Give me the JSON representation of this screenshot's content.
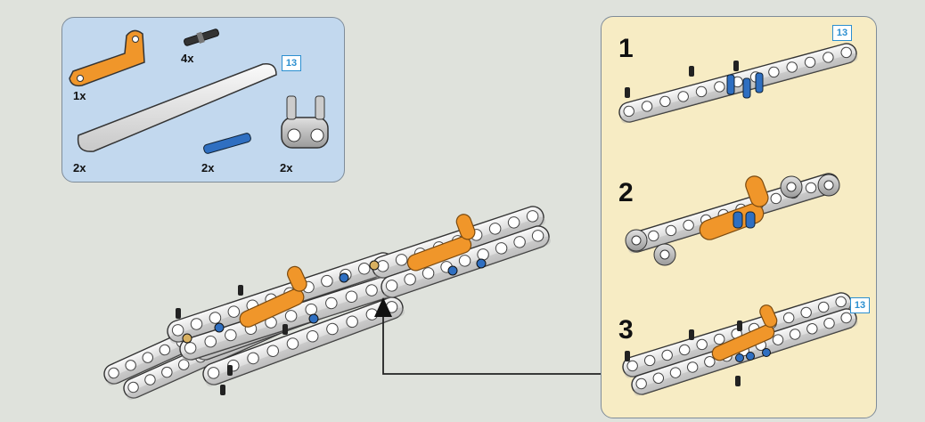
{
  "parts_list": {
    "badge": "13",
    "items": [
      {
        "qty": "1x",
        "part": "orange-bent-liftarm"
      },
      {
        "qty": "4x",
        "part": "black-pin"
      },
      {
        "qty": "2x",
        "part": "white-long-beam"
      },
      {
        "qty": "2x",
        "part": "blue-axle-pin"
      },
      {
        "qty": "2x",
        "part": "gray-double-pin-connector"
      }
    ]
  },
  "sub_assembly": {
    "steps": [
      {
        "number": "1",
        "badge": "13"
      },
      {
        "number": "2",
        "badge": ""
      },
      {
        "number": "3",
        "badge": "13"
      }
    ]
  },
  "colors": {
    "background": "#dfe2dc",
    "parts_panel": "#c2d8ee",
    "sub_panel": "#f7ecc4",
    "orange": "#f0962a",
    "blue": "#2f6fc1",
    "badge": "#2b8fd0"
  }
}
